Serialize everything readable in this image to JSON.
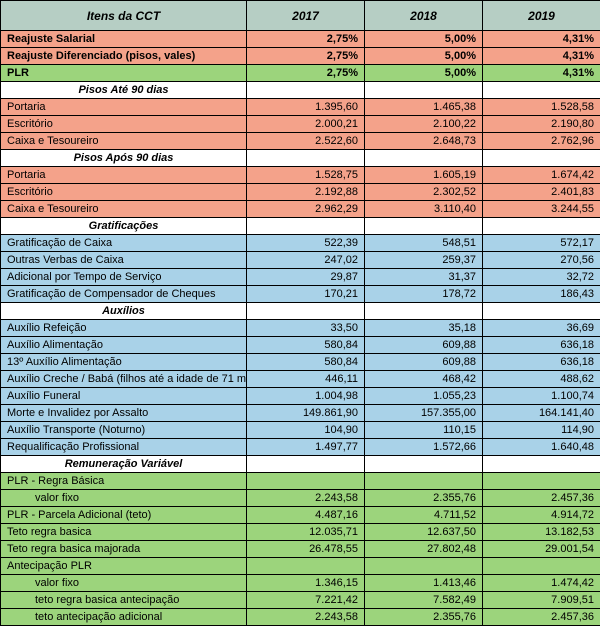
{
  "colors": {
    "header_bg": "#b6cec4",
    "salmon": "#f4a28a",
    "blue": "#a9d2e8",
    "green": "#9cd47c",
    "border": "#000000"
  },
  "header": {
    "item_col": "Itens da CCT",
    "years": [
      "2017",
      "2018",
      "2019"
    ]
  },
  "top_rows": [
    {
      "label": "Reajuste Salarial",
      "bg": "salmon",
      "v": [
        "2,75%",
        "5,00%",
        "4,31%"
      ]
    },
    {
      "label": "Reajuste Diferenciado (pisos, vales)",
      "bg": "salmon",
      "v": [
        "2,75%",
        "5,00%",
        "4,31%"
      ]
    },
    {
      "label": "PLR",
      "bg": "green",
      "v": [
        "2,75%",
        "5,00%",
        "4,31%"
      ]
    }
  ],
  "sections": [
    {
      "title": "Pisos Até 90 dias",
      "title_bg": "none",
      "row_bg": "salmon",
      "rows": [
        {
          "label": "Portaria",
          "v": [
            "1.395,60",
            "1.465,38",
            "1.528,58"
          ]
        },
        {
          "label": "Escritório",
          "v": [
            "2.000,21",
            "2.100,22",
            "2.190,80"
          ]
        },
        {
          "label": "Caixa e Tesoureiro",
          "v": [
            "2.522,60",
            "2.648,73",
            "2.762,96"
          ]
        }
      ]
    },
    {
      "title": "Pisos Após 90 dias",
      "title_bg": "none",
      "row_bg": "salmon",
      "rows": [
        {
          "label": "Portaria",
          "v": [
            "1.528,75",
            "1.605,19",
            "1.674,42"
          ]
        },
        {
          "label": "Escritório",
          "v": [
            "2.192,88",
            "2.302,52",
            "2.401,83"
          ]
        },
        {
          "label": "Caixa e Tesoureiro",
          "v": [
            "2.962,29",
            "3.110,40",
            "3.244,55"
          ]
        }
      ]
    },
    {
      "title": "Gratificações",
      "title_bg": "none",
      "row_bg": "blue",
      "rows": [
        {
          "label": "Gratificação de Caixa",
          "v": [
            "522,39",
            "548,51",
            "572,17"
          ]
        },
        {
          "label": "Outras Verbas de Caixa",
          "v": [
            "247,02",
            "259,37",
            "270,56"
          ]
        },
        {
          "label": "Adicional por Tempo de Serviço",
          "v": [
            "29,87",
            "31,37",
            "32,72"
          ]
        },
        {
          "label": "Gratificação de Compensador de Cheques",
          "v": [
            "170,21",
            "178,72",
            "186,43"
          ]
        }
      ]
    },
    {
      "title": "Auxílios",
      "title_bg": "none",
      "row_bg": "blue",
      "rows": [
        {
          "label": "Auxílio Refeição",
          "v": [
            "33,50",
            "35,18",
            "36,69"
          ]
        },
        {
          "label": "Auxílio Alimentação",
          "v": [
            "580,84",
            "609,88",
            "636,18"
          ]
        },
        {
          "label": "13º Auxílio Alimentação",
          "v": [
            "580,84",
            "609,88",
            "636,18"
          ]
        },
        {
          "label": "Auxílio Creche / Babá (filhos até a idade de 71 meses)",
          "v": [
            "446,11",
            "468,42",
            "488,62"
          ]
        },
        {
          "label": "Auxílio Funeral",
          "v": [
            "1.004,98",
            "1.055,23",
            "1.100,74"
          ]
        },
        {
          "label": "Morte e Invalidez por Assalto",
          "v": [
            "149.861,90",
            "157.355,00",
            "164.141,40"
          ]
        },
        {
          "label": "Auxílio Transporte (Noturno)",
          "v": [
            "104,90",
            "110,15",
            "114,90"
          ]
        },
        {
          "label": "Requalificação Profissional",
          "v": [
            "1.497,77",
            "1.572,66",
            "1.640,48"
          ]
        }
      ]
    },
    {
      "title": "Remuneração Variável",
      "title_bg": "none",
      "row_bg": "green",
      "rows": [
        {
          "label": "PLR - Regra Básica",
          "indent": 0,
          "v": [
            "",
            "",
            ""
          ]
        },
        {
          "label": "valor fixo",
          "indent": 2,
          "v": [
            "2.243,58",
            "2.355,76",
            "2.457,36"
          ]
        },
        {
          "label": "PLR - Parcela Adicional (teto)",
          "indent": 0,
          "v": [
            "4.487,16",
            "4.711,52",
            "4.914,72"
          ]
        },
        {
          "label": "Teto regra basica",
          "indent": 0,
          "v": [
            "12.035,71",
            "12.637,50",
            "13.182,53"
          ]
        },
        {
          "label": "Teto regra basica majorada",
          "indent": 0,
          "v": [
            "26.478,55",
            "27.802,48",
            "29.001,54"
          ]
        },
        {
          "label": "Antecipação PLR",
          "indent": 0,
          "v": [
            "",
            "",
            ""
          ]
        },
        {
          "label": "valor fixo",
          "indent": 2,
          "v": [
            "1.346,15",
            "1.413,46",
            "1.474,42"
          ]
        },
        {
          "label": "teto regra basica antecipação",
          "indent": 2,
          "v": [
            "7.221,42",
            "7.582,49",
            "7.909,51"
          ]
        },
        {
          "label": "teto antecipação adicional",
          "indent": 2,
          "v": [
            "2.243,58",
            "2.355,76",
            "2.457,36"
          ]
        }
      ]
    }
  ]
}
